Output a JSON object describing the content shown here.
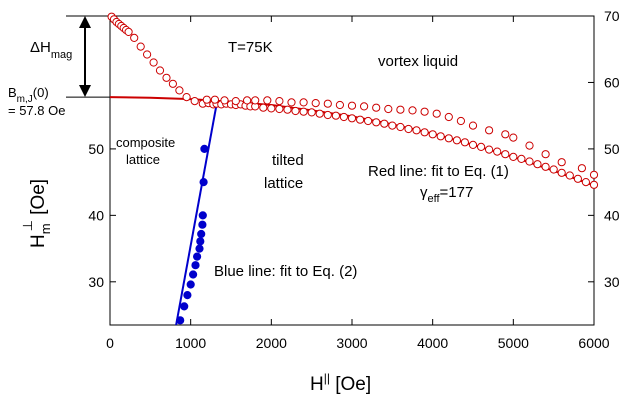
{
  "chart_data": {
    "type": "scatter",
    "title": "",
    "xlabel": {
      "main": "H",
      "sup": "||",
      "unit": " [Oe]"
    },
    "ylabel": {
      "main": "H",
      "sub": "m",
      "sup": "⊥",
      "unit": " [Oe]"
    },
    "xlim": [
      0,
      6000
    ],
    "ylim": [
      23.5,
      70
    ],
    "x_ticks": [
      0,
      1000,
      2000,
      3000,
      4000,
      5000,
      6000
    ],
    "y_ticks_left": [
      30,
      40,
      50
    ],
    "y_ticks_right": [
      30,
      40,
      50,
      60,
      70
    ],
    "grid": false,
    "colors": {
      "red": "#cc0000",
      "blue": "#0000cc",
      "axis": "#000000"
    },
    "series": [
      {
        "marker": "open-circle",
        "color": "#cc0000",
        "points": [
          [
            20,
            69.9
          ],
          [
            50,
            69.5
          ],
          [
            80,
            69.1
          ],
          [
            110,
            68.8
          ],
          [
            140,
            68.5
          ],
          [
            170,
            68.2
          ],
          [
            200,
            67.9
          ],
          [
            230,
            67.6
          ],
          [
            300,
            66.7
          ],
          [
            380,
            65.4
          ],
          [
            460,
            64.2
          ],
          [
            540,
            63.0
          ],
          [
            620,
            61.8
          ],
          [
            700,
            60.7
          ],
          [
            780,
            59.8
          ],
          [
            860,
            58.8
          ],
          [
            950,
            57.8
          ],
          [
            1050,
            57.2
          ],
          [
            1150,
            56.8
          ],
          [
            1220,
            56.9
          ],
          [
            1280,
            56.7
          ],
          [
            1320,
            56.8
          ],
          [
            1380,
            56.7
          ],
          [
            1440,
            56.8
          ],
          [
            1500,
            56.7
          ],
          [
            1560,
            56.6
          ],
          [
            1620,
            56.7
          ],
          [
            1680,
            56.5
          ],
          [
            1740,
            56.4
          ],
          [
            1800,
            56.4
          ],
          [
            1900,
            56.2
          ],
          [
            2000,
            56.1
          ],
          [
            2100,
            56.0
          ],
          [
            2200,
            55.9
          ],
          [
            2300,
            55.7
          ],
          [
            2400,
            55.6
          ],
          [
            2500,
            55.5
          ],
          [
            2600,
            55.3
          ],
          [
            2700,
            55.1
          ],
          [
            2800,
            55.0
          ],
          [
            2900,
            54.8
          ],
          [
            3000,
            54.6
          ],
          [
            3100,
            54.4
          ],
          [
            3200,
            54.2
          ],
          [
            3300,
            54.0
          ],
          [
            3400,
            53.8
          ],
          [
            3500,
            53.5
          ],
          [
            3600,
            53.3
          ],
          [
            3700,
            53.0
          ],
          [
            3800,
            52.8
          ],
          [
            3900,
            52.5
          ],
          [
            4000,
            52.2
          ],
          [
            4100,
            51.9
          ],
          [
            4200,
            51.6
          ],
          [
            4300,
            51.3
          ],
          [
            4400,
            51.0
          ],
          [
            4500,
            50.6
          ],
          [
            4600,
            50.3
          ],
          [
            4700,
            49.9
          ],
          [
            4800,
            49.6
          ],
          [
            4900,
            49.2
          ],
          [
            5000,
            48.8
          ],
          [
            5100,
            48.5
          ],
          [
            5200,
            48.1
          ],
          [
            5300,
            47.7
          ],
          [
            5400,
            47.3
          ],
          [
            5500,
            46.9
          ],
          [
            5600,
            46.4
          ],
          [
            5700,
            46.0
          ],
          [
            5800,
            45.5
          ],
          [
            5900,
            45.0
          ],
          [
            6000,
            44.6
          ],
          [
            6000,
            46.1
          ],
          [
            5850,
            47.1
          ],
          [
            5600,
            48.0
          ],
          [
            5400,
            49.2
          ],
          [
            5200,
            50.5
          ],
          [
            5000,
            51.7
          ],
          [
            4900,
            52.2
          ],
          [
            4700,
            52.8
          ],
          [
            4500,
            53.5
          ],
          [
            4350,
            54.2
          ],
          [
            4200,
            54.8
          ],
          [
            4050,
            55.3
          ],
          [
            3900,
            55.6
          ],
          [
            3750,
            55.8
          ],
          [
            3600,
            55.9
          ],
          [
            3450,
            56.0
          ],
          [
            3300,
            56.2
          ],
          [
            3150,
            56.4
          ],
          [
            3000,
            56.5
          ],
          [
            2850,
            56.6
          ],
          [
            2700,
            56.8
          ],
          [
            2550,
            56.9
          ],
          [
            2400,
            57.0
          ],
          [
            2250,
            57.0
          ],
          [
            2100,
            57.2
          ],
          [
            1950,
            57.3
          ],
          [
            1800,
            57.3
          ],
          [
            1700,
            57.3
          ],
          [
            1560,
            57.2
          ],
          [
            1420,
            57.3
          ],
          [
            1300,
            57.4
          ],
          [
            1200,
            57.4
          ]
        ]
      },
      {
        "marker": "filled-circle",
        "color": "#0000cc",
        "points": [
          [
            870,
            24.2
          ],
          [
            920,
            26.3
          ],
          [
            960,
            28.0
          ],
          [
            1000,
            29.6
          ],
          [
            1030,
            31.1
          ],
          [
            1060,
            32.5
          ],
          [
            1080,
            33.8
          ],
          [
            1110,
            35.0
          ],
          [
            1120,
            36.1
          ],
          [
            1130,
            37.2
          ],
          [
            1145,
            38.6
          ],
          [
            1150,
            40.0
          ],
          [
            1160,
            45.0
          ],
          [
            1170,
            50.0
          ]
        ]
      }
    ],
    "fits": [
      {
        "name": "Red line: fit to Eq. (1)",
        "color": "#cc0000",
        "points": [
          [
            0,
            57.8
          ],
          [
            500,
            57.7
          ],
          [
            1000,
            57.5
          ],
          [
            1500,
            57.1
          ],
          [
            2000,
            56.6
          ],
          [
            2500,
            55.8
          ],
          [
            3000,
            54.9
          ],
          [
            3500,
            53.7
          ],
          [
            4000,
            52.3
          ],
          [
            4500,
            50.6
          ],
          [
            5000,
            48.8
          ],
          [
            5500,
            46.7
          ],
          [
            6000,
            44.5
          ]
        ]
      },
      {
        "name": "Blue line: fit to Eq. (2)",
        "color": "#0000cc",
        "points": [
          [
            820,
            23.5
          ],
          [
            1330,
            57.3
          ]
        ]
      }
    ],
    "reference_lines": [
      {
        "y": 70,
        "x_from": -1000,
        "x_to": 0
      },
      {
        "y": 57.8,
        "x_from": -1000,
        "x_to": 0
      }
    ],
    "annotations": {
      "delta_h": {
        "main": "ΔH",
        "sub": "mag"
      },
      "bmj": {
        "line1_main": "B",
        "line1_sub": "m,J",
        "line1_suffix": "(0)",
        "line2": "= 57.8 Oe"
      },
      "temperature": "T=75K",
      "vortex_liquid": "vortex liquid",
      "composite_1": "composite",
      "composite_2": "lattice",
      "tilted_1": "tilted",
      "tilted_2": "lattice",
      "red_line": "Red line: fit to Eq. (1)",
      "gamma": {
        "main": "γ",
        "sub": "eff",
        "suffix": "=177"
      },
      "blue_line": "Blue line: fit to Eq. (2)"
    }
  }
}
